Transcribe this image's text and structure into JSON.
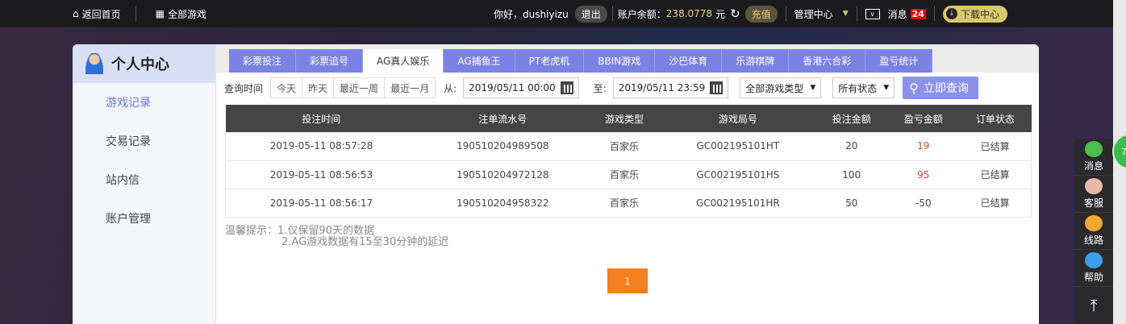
{
  "topbar": {
    "home": "返回首页",
    "games": "全部游戏",
    "greeting": "你好，dushiyizu",
    "logout": "退出",
    "balance_label": "账户余额：",
    "balance": "238.0778",
    "currency": "元",
    "recharge": "充值",
    "manage": "管理中心",
    "messages": "消息",
    "message_count": "24",
    "download": "下载中心"
  },
  "sidebar": {
    "title": "个人中心",
    "items": [
      {
        "label": "游戏记录",
        "active": true
      },
      {
        "label": "交易记录"
      },
      {
        "label": "站内信"
      },
      {
        "label": "账户管理"
      }
    ]
  },
  "tabs": [
    {
      "label": "彩票投注"
    },
    {
      "label": "彩票追号"
    },
    {
      "label": "AG真人娱乐",
      "active": true
    },
    {
      "label": "AG捕鱼王"
    },
    {
      "label": "PT老虎机"
    },
    {
      "label": "BBIN游戏"
    },
    {
      "label": "沙巴体育"
    },
    {
      "label": "乐游棋牌"
    },
    {
      "label": "香港六合彩"
    },
    {
      "label": "盈亏统计"
    }
  ],
  "filter": {
    "label": "查询时间",
    "ranges": [
      "今天",
      "昨天",
      "最近一周",
      "最近一月"
    ],
    "from_label": "从:",
    "from": "2019/05/11 00:00",
    "to_label": "至:",
    "to": "2019/05/11 23:59",
    "game_type": "全部游戏类型",
    "status": "所有状态",
    "query": "立即查询"
  },
  "table": {
    "headers": [
      "投注时间",
      "注单流水号",
      "游戏类型",
      "游戏局号",
      "投注金额",
      "盈亏金额",
      "订单状态"
    ],
    "rows": [
      [
        "2019-05-11 08:57:28",
        "190510204989508",
        "百家乐",
        "GC002195101HT",
        "20",
        "19",
        "已结算"
      ],
      [
        "2019-05-11 08:56:53",
        "190510204972128",
        "百家乐",
        "GC002195101HS",
        "100",
        "95",
        "已结算"
      ],
      [
        "2019-05-11 08:56:17",
        "190510204958322",
        "百家乐",
        "GC002195101HR",
        "50",
        "-50",
        "已结算"
      ]
    ]
  },
  "tips": {
    "prefix": "温馨提示：",
    "line1": "1.仅保留90天的数据",
    "line2": "2.AG游戏数据有15至30分钟的延迟"
  },
  "pagination": {
    "current": "1"
  },
  "float_menu": [
    {
      "label": "消息",
      "color": "#4cbf4a"
    },
    {
      "label": "客服",
      "color": "#e8b8a8"
    },
    {
      "label": "线路",
      "color": "#f0a830"
    },
    {
      "label": "帮助",
      "color": "#3a9ee8"
    }
  ],
  "float_ball": "72",
  "colors": {
    "accent": "#7b82e6",
    "profit": "#e04030",
    "page": "#f5801e"
  }
}
